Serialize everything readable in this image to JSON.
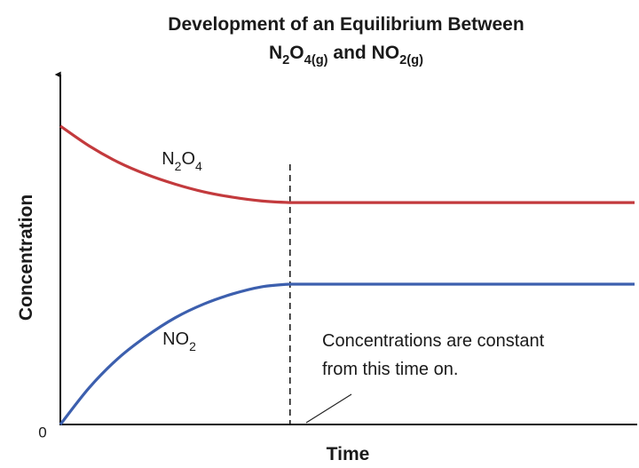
{
  "chart_data": {
    "type": "line",
    "title": [
      "Development of an Equilibrium Between",
      "N2O4(g) and NO2(g)"
    ],
    "x_label": "Time",
    "y_label": "Concentration",
    "x": [
      0,
      0.5,
      1,
      1.5,
      2,
      2.5,
      3,
      3.5,
      4,
      10
    ],
    "series": [
      {
        "name": "N2O4",
        "color": "#c33a3d",
        "values": [
          0.889,
          0.83,
          0.782,
          0.745,
          0.716,
          0.693,
          0.677,
          0.666,
          0.661,
          0.661
        ]
      },
      {
        "name": "NO2",
        "color": "#3c5fae",
        "values": [
          0,
          0.109,
          0.196,
          0.263,
          0.318,
          0.359,
          0.389,
          0.41,
          0.418,
          0.418
        ]
      }
    ],
    "xlim": [
      0,
      10
    ],
    "ylim": [
      0,
      1
    ],
    "yticks": [
      0
    ],
    "vline": 4,
    "annotation": [
      "Concentrations are constant",
      "from this time on."
    ]
  }
}
